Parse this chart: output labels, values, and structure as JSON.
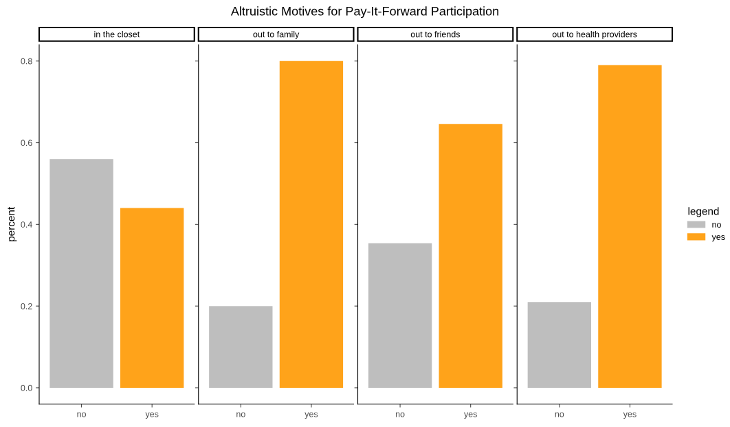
{
  "chart_data": [
    {
      "type": "bar",
      "title": "in the closet",
      "annotations": [
        "Altruistic Motives for Pay-It-Forward Participation"
      ],
      "ylabel": "percent",
      "categories": [
        "no",
        "yes"
      ],
      "series": [
        {
          "color": "#bebebe",
          "values": [
            0.56,
            null
          ]
        },
        {
          "color": "#ffa31a",
          "values": [
            null,
            0.44
          ]
        }
      ],
      "ylim": [
        -0.04,
        0.84
      ],
      "yticks": [
        {
          "value": 0,
          "label": "0.0"
        },
        0.2,
        0.4,
        0.6,
        0.8
      ],
      "grid": false
    },
    {
      "type": "bar",
      "title": "out to family",
      "categories": [
        "no",
        "yes"
      ],
      "series": [
        {
          "color": "#bebebe",
          "values": [
            0.2,
            null
          ]
        },
        {
          "color": "#ffa31a",
          "values": [
            null,
            0.8
          ]
        }
      ],
      "ylim": [
        -0.04,
        0.84
      ],
      "yticks": [
        {
          "value": 0,
          "label": null
        },
        {
          "value": 0.2,
          "label": null
        },
        {
          "value": 0.4,
          "label": null
        },
        {
          "value": 0.6,
          "label": null
        },
        {
          "value": 0.8,
          "label": null
        }
      ],
      "tick_labels": "x",
      "grid": false
    },
    {
      "type": "bar",
      "title": "out to friends",
      "categories": [
        "no",
        "yes"
      ],
      "series": [
        {
          "color": "#bebebe",
          "values": [
            0.354,
            null
          ]
        },
        {
          "color": "#ffa31a",
          "values": [
            null,
            0.646
          ]
        }
      ],
      "ylim": [
        -0.04,
        0.84
      ],
      "yticks": [
        {
          "value": 0,
          "label": null
        },
        {
          "value": 0.2,
          "label": null
        },
        {
          "value": 0.4,
          "label": null
        },
        {
          "value": 0.6,
          "label": null
        },
        {
          "value": 0.8,
          "label": null
        }
      ],
      "tick_labels": "x",
      "grid": false
    },
    {
      "type": "bar",
      "title": "out to health providers",
      "categories": [
        "no",
        "yes"
      ],
      "series": [
        {
          "name": "no",
          "color": "#bebebe",
          "values": [
            0.21,
            null
          ]
        },
        {
          "name": "yes",
          "color": "#ffa31a",
          "values": [
            null,
            0.79
          ]
        }
      ],
      "ylim": [
        -0.04,
        0.84
      ],
      "yticks": [
        {
          "value": 0,
          "label": null
        },
        {
          "value": 0.2,
          "label": null
        },
        {
          "value": 0.4,
          "label": null
        },
        {
          "value": 0.6,
          "label": null
        },
        {
          "value": 0.8,
          "label": null
        }
      ],
      "tick_labels": "x",
      "grid": false,
      "legend": "right",
      "legend_title": "legend"
    }
  ]
}
